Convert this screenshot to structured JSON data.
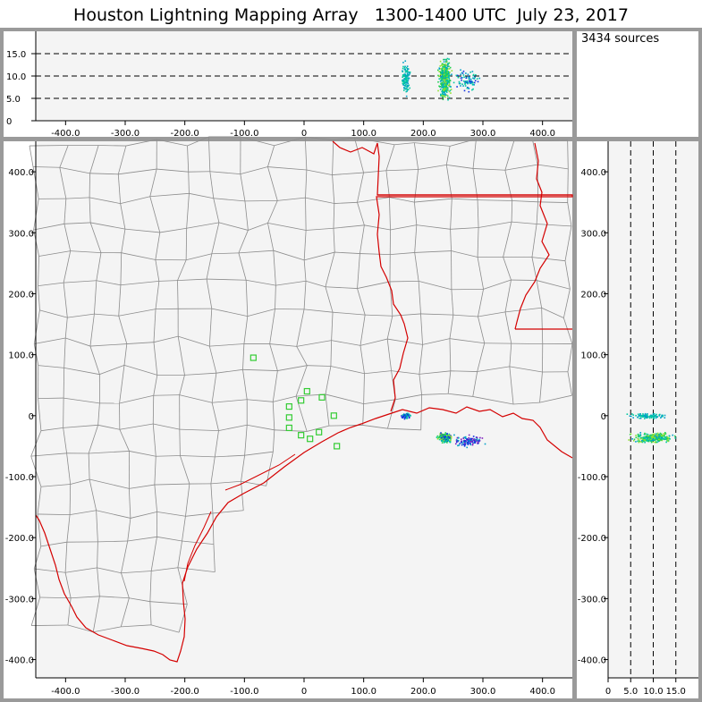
{
  "title": "Houston Lightning Mapping Array   1300-1400 UTC  July 23, 2017",
  "source_count": "3434 sources",
  "colors": {
    "background": "#ffffff",
    "panel_background": "#f4f4f4",
    "frame": "#9a9a9a",
    "county_lines": "#8c8c8c",
    "state_and_coast_lines": "#d40000",
    "station_markers": "#33cc33",
    "sources_palette": [
      "#00a0c8",
      "#00c8a0",
      "#20d050",
      "#90e030",
      "#1030e0",
      "#8020c0"
    ]
  },
  "chart_data": [
    {
      "type": "scatter",
      "panel": "altitude-vs-east-west",
      "xlim": [
        -450,
        450
      ],
      "ylim": [
        0,
        20
      ],
      "xticks": [
        "-400.0",
        "-300.0",
        "-200.0",
        "-100.0",
        "0",
        "100.0",
        "200.0",
        "300.0",
        "400.0"
      ],
      "xtick_values": [
        -400,
        -300,
        -200,
        -100,
        0,
        100,
        200,
        300,
        400
      ],
      "yticks": [
        "0",
        "5.0",
        "10.0",
        "15.0"
      ],
      "ytick_values": [
        0,
        5,
        10,
        15
      ],
      "dashed_reference_lines": [
        5,
        10,
        15
      ],
      "clusters": [
        {
          "name": "cluster-east-coast",
          "x_range": [
            162,
            178
          ],
          "y_range": [
            5,
            14
          ],
          "count": 120,
          "colors": [
            "#00a0c8",
            "#00c8a0"
          ]
        },
        {
          "name": "cluster-main-cell",
          "x_range": [
            222,
            248
          ],
          "y_range": [
            4,
            15
          ],
          "count": 420,
          "colors": [
            "#00c8a0",
            "#20d050",
            "#90e030",
            "#00a0c8"
          ]
        },
        {
          "name": "cluster-main-tail",
          "x_range": [
            248,
            300
          ],
          "y_range": [
            6,
            12
          ],
          "count": 90,
          "colors": [
            "#00a0c8",
            "#00c8a0",
            "#1030e0"
          ]
        }
      ]
    },
    {
      "type": "scatter",
      "panel": "plan-view-map",
      "xlim": [
        -450,
        450
      ],
      "ylim": [
        -430,
        450
      ],
      "xticks": [
        "-400.0",
        "-300.0",
        "-200.0",
        "-100.0",
        "0",
        "100.0",
        "200.0",
        "300.0",
        "400.0"
      ],
      "xtick_values": [
        -400,
        -300,
        -200,
        -100,
        0,
        100,
        200,
        300,
        400
      ],
      "yticks": [
        "400.0",
        "300.0",
        "200.0",
        "100.0",
        "0",
        "-100.0",
        "-200.0",
        "-300.0",
        "-400.0"
      ],
      "ytick_values": [
        400,
        300,
        200,
        100,
        0,
        -100,
        -200,
        -300,
        -400
      ],
      "stations": [
        [
          -85,
          95
        ],
        [
          -25,
          15
        ],
        [
          5,
          40
        ],
        [
          -5,
          25
        ],
        [
          30,
          30
        ],
        [
          -25,
          -3
        ],
        [
          -25,
          -20
        ],
        [
          -5,
          -32
        ],
        [
          10,
          -38
        ],
        [
          25,
          -27
        ],
        [
          50,
          0
        ],
        [
          55,
          -50
        ]
      ],
      "clusters": [
        {
          "name": "cluster-east-coast",
          "x_range": [
            160,
            180
          ],
          "y_range": [
            -5,
            6
          ],
          "count": 80,
          "colors": [
            "#00a0c8",
            "#00c8a0",
            "#1030e0"
          ]
        },
        {
          "name": "cluster-main-cell",
          "x_range": [
            220,
            250
          ],
          "y_range": [
            -45,
            -25
          ],
          "count": 260,
          "colors": [
            "#20d050",
            "#90e030",
            "#00c8a0",
            "#1030e0"
          ]
        },
        {
          "name": "cluster-main-tail",
          "x_range": [
            240,
            310
          ],
          "y_range": [
            -52,
            -28
          ],
          "count": 120,
          "colors": [
            "#1030e0",
            "#8020c0",
            "#00a0c8"
          ]
        }
      ]
    },
    {
      "type": "scatter",
      "panel": "north-south-vs-altitude",
      "xlim": [
        0,
        20
      ],
      "ylim": [
        -430,
        450
      ],
      "xticks": [
        "0",
        "5.0",
        "10.0",
        "15.0"
      ],
      "xtick_values": [
        0,
        5,
        10,
        15
      ],
      "yticks": [
        "400.0",
        "300.0",
        "200.0",
        "100.0",
        "0",
        "-100.0",
        "-200.0",
        "-300.0",
        "-400.0"
      ],
      "ytick_values": [
        400,
        300,
        200,
        100,
        0,
        -100,
        -200,
        -300,
        -400
      ],
      "dashed_reference_lines": [
        5,
        10,
        15
      ],
      "clusters": [
        {
          "name": "cluster-east-coast",
          "x_range": [
            3,
            14
          ],
          "y_range": [
            -5,
            6
          ],
          "count": 110,
          "colors": [
            "#00a0c8",
            "#00c8a0"
          ]
        },
        {
          "name": "cluster-main-cell",
          "x_range": [
            4,
            16
          ],
          "y_range": [
            -45,
            -25
          ],
          "count": 300,
          "colors": [
            "#20d050",
            "#90e030",
            "#00c8a0",
            "#00a0c8"
          ]
        }
      ]
    }
  ]
}
